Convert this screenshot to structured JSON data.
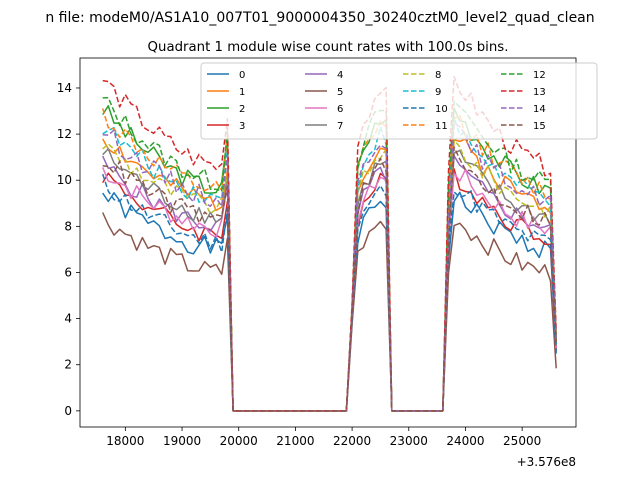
{
  "chart_data": {
    "type": "line",
    "suptitle": "n file: modeM0/AS1A10_007T01_9000004350_30240cztM0_level2_quad_clean",
    "title": "Quadrant 1 module wise count rates with 100.0s bins.",
    "xlabel": "",
    "ylabel": "",
    "x_offset_label": "+3.576e8",
    "xlim": [
      17200,
      25950
    ],
    "ylim": [
      -0.7,
      15.3
    ],
    "xticks": [
      18000,
      19000,
      20000,
      21000,
      22000,
      23000,
      24000,
      25000
    ],
    "yticks": [
      0,
      2,
      4,
      6,
      8,
      10,
      12,
      14
    ],
    "xtick_labels": [
      "18000",
      "19000",
      "20000",
      "21000",
      "22000",
      "23000",
      "24000",
      "25000"
    ],
    "ytick_labels": [
      "0",
      "2",
      "4",
      "6",
      "8",
      "10",
      "12",
      "14"
    ],
    "legend_position": "upper center",
    "legend_ncol": 4,
    "segments": [
      {
        "x_start": 17600,
        "x_end": 19700,
        "step": 100,
        "shape": "decay"
      },
      {
        "x_end": 20000,
        "points": [
          [
            19800,
            0.9,
            0.07
          ],
          [
            19900,
            0.0,
            0.0
          ]
        ]
      },
      {
        "x_start": 20000,
        "x_end": 21900,
        "value": 0.0
      },
      {
        "points": [
          [
            22000,
            2.5,
            0.15
          ],
          [
            22100,
            0.8,
            0.0
          ],
          [
            22200,
            0.87,
            0.0
          ],
          [
            22300,
            0.9,
            0.0
          ],
          [
            22400,
            0.94,
            0.0
          ],
          [
            22500,
            0.97,
            0.0
          ],
          [
            22600,
            0.95,
            0.0
          ],
          [
            22700,
            0.0,
            0.0
          ]
        ]
      },
      {
        "x_start": 22700,
        "x_end": 23600,
        "value": 0.0
      },
      {
        "points": [
          [
            23700,
            0.7,
            0.05
          ]
        ]
      },
      {
        "x_start": 23800,
        "x_end": 25500,
        "step": 100,
        "shape": "decay"
      },
      {
        "points": [
          [
            25600,
            0.25,
            0.03
          ]
        ]
      }
    ],
    "series": [
      {
        "name": "0",
        "color": "#1f77b4",
        "dash": false,
        "start": 9.4,
        "end": 7.0
      },
      {
        "name": "1",
        "color": "#ff7f0e",
        "dash": false,
        "start": 11.9,
        "end": 9.0
      },
      {
        "name": "2",
        "color": "#2ca02c",
        "dash": false,
        "start": 13.1,
        "end": 9.6
      },
      {
        "name": "3",
        "color": "#d62728",
        "dash": false,
        "start": 10.3,
        "end": 7.6
      },
      {
        "name": "4",
        "color": "#9467bd",
        "dash": false,
        "start": 10.7,
        "end": 8.0
      },
      {
        "name": "5",
        "color": "#8c564b",
        "dash": false,
        "start": 8.4,
        "end": 6.0
      },
      {
        "name": "6",
        "color": "#e377c2",
        "dash": false,
        "start": 10.5,
        "end": 7.9
      },
      {
        "name": "7",
        "color": "#7f7f7f",
        "dash": false,
        "start": 11.2,
        "end": 8.4
      },
      {
        "name": "8",
        "color": "#bcbd22",
        "dash": true,
        "start": 11.6,
        "end": 8.8
      },
      {
        "name": "9",
        "color": "#17becf",
        "dash": true,
        "start": 12.4,
        "end": 9.2
      },
      {
        "name": "10",
        "color": "#1f77b4",
        "dash": true,
        "start": 9.9,
        "end": 7.3
      },
      {
        "name": "11",
        "color": "#ff7f0e",
        "dash": true,
        "start": 12.9,
        "end": 9.5
      },
      {
        "name": "12",
        "color": "#2ca02c",
        "dash": true,
        "start": 13.5,
        "end": 9.9
      },
      {
        "name": "13",
        "color": "#d62728",
        "dash": true,
        "start": 14.4,
        "end": 10.6
      },
      {
        "name": "14",
        "color": "#9467bd",
        "dash": true,
        "start": 12.2,
        "end": 9.2
      },
      {
        "name": "15",
        "color": "#8c564b",
        "dash": true,
        "start": 11.0,
        "end": 8.3
      }
    ]
  }
}
